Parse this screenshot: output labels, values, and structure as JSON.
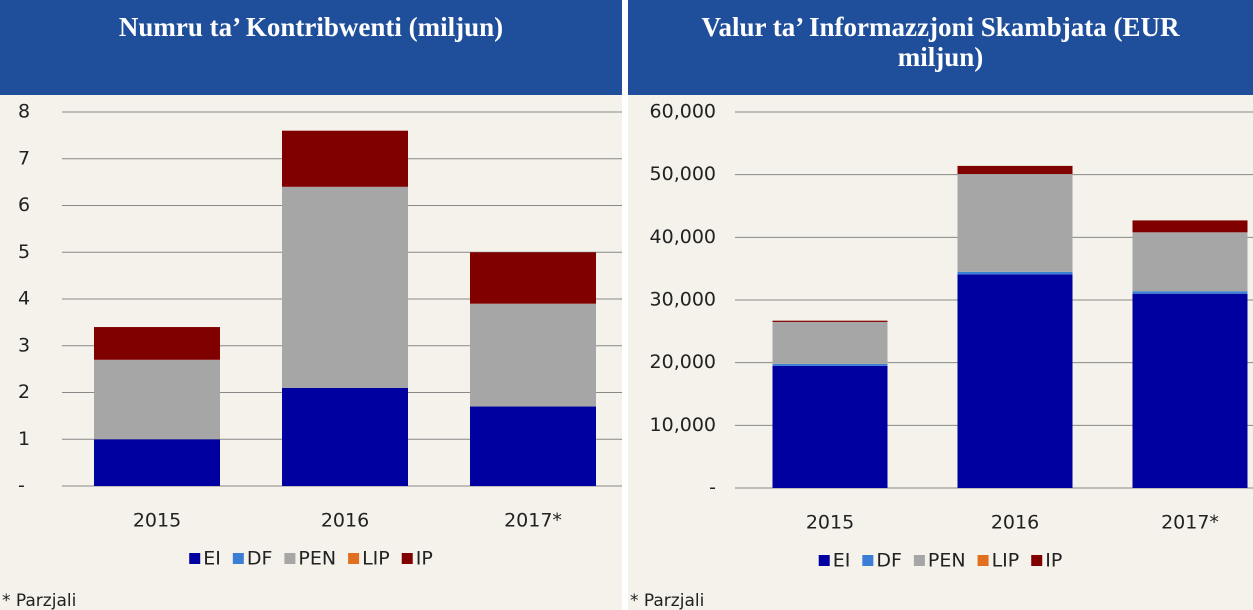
{
  "chart_data": [
    {
      "type": "stacked_bar",
      "title": "Numru ta’ Kontribwenti (miljun)",
      "note": "* Parzjali",
      "categories": [
        "2015",
        "2016",
        "2017*"
      ],
      "series": [
        {
          "name": "EI",
          "color": "#0000a0",
          "values": [
            1.0,
            2.1,
            1.7
          ]
        },
        {
          "name": "DF",
          "color": "#3a7fd5",
          "values": [
            0,
            0,
            0
          ]
        },
        {
          "name": "PEN",
          "color": "#a6a6a6",
          "values": [
            1.7,
            4.3,
            2.2
          ]
        },
        {
          "name": "LIP",
          "color": "#e07020",
          "values": [
            0,
            0,
            0
          ]
        },
        {
          "name": "IP",
          "color": "#800000",
          "values": [
            0.7,
            1.2,
            1.1
          ]
        }
      ],
      "ylim": [
        0,
        8
      ],
      "yticks": [
        {
          "value": 0,
          "label": "-"
        },
        1,
        2,
        3,
        4,
        5,
        6,
        7,
        8
      ],
      "grid": true,
      "legend": "bottom"
    },
    {
      "type": "stacked_bar",
      "title": "Valur ta’ Informazzjoni Skambjata (EUR miljun)",
      "note": "* Parzjali",
      "categories": [
        "2015",
        "2016",
        "2017*"
      ],
      "series": [
        {
          "name": "EI",
          "color": "#0000a0",
          "values": [
            19500,
            34100,
            31000
          ]
        },
        {
          "name": "DF",
          "color": "#3a7fd5",
          "values": [
            300,
            400,
            400
          ]
        },
        {
          "name": "PEN",
          "color": "#a6a6a6",
          "values": [
            6700,
            15600,
            9400
          ]
        },
        {
          "name": "LIP",
          "color": "#e07020",
          "values": [
            0,
            0,
            0
          ]
        },
        {
          "name": "IP",
          "color": "#800000",
          "values": [
            200,
            1300,
            1900
          ]
        }
      ],
      "ylim": [
        0,
        60000
      ],
      "yticks": [
        {
          "value": 0,
          "label": "-"
        },
        {
          "value": 10000,
          "label": "10,000"
        },
        {
          "value": 20000,
          "label": "20,000"
        },
        {
          "value": 30000,
          "label": "30,000"
        },
        {
          "value": 40000,
          "label": "40,000"
        },
        {
          "value": 50000,
          "label": "50,000"
        },
        {
          "value": 60000,
          "label": "60,000"
        }
      ],
      "grid": true,
      "legend": "bottom"
    }
  ]
}
